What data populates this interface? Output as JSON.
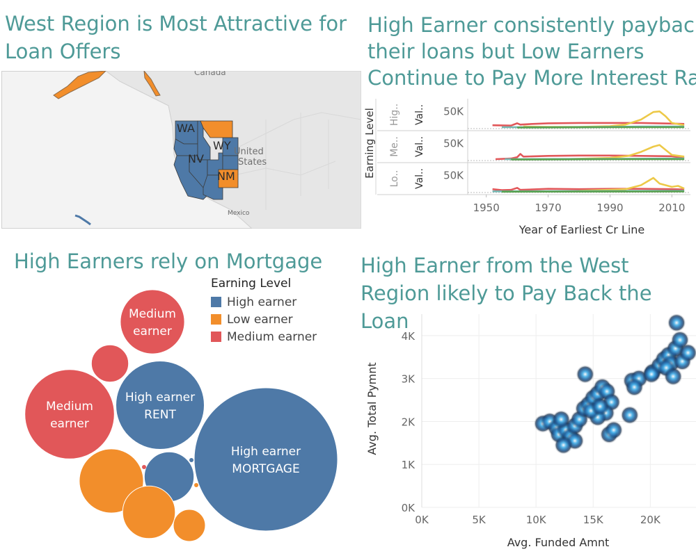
{
  "colors": {
    "high": "#4e79a7",
    "low": "#f28e2b",
    "medium": "#e15759",
    "title": "#4e9a97",
    "teal": "#76b7b2",
    "yellow": "#edc948"
  },
  "titles": {
    "map": "West Region is Most Attractive for Loan Offers",
    "line": "High Earner consistently payback their loans but Low Earners Continue to Pay More Interest Rates",
    "bubble": "High Earners rely on Mortgage",
    "scatter": "High Earner from the West Region likely to Pay Back the Loan"
  },
  "map": {
    "labels": {
      "canada": "Canada",
      "us_1": "United",
      "us_2": "States",
      "mexico": "Mexico"
    },
    "states": [
      {
        "abbr": "WA",
        "earning": "high",
        "labeled": true
      },
      {
        "abbr": "OR",
        "earning": "high",
        "labeled": false
      },
      {
        "abbr": "CA",
        "earning": "high",
        "labeled": false
      },
      {
        "abbr": "ID",
        "earning": "high",
        "labeled": false
      },
      {
        "abbr": "NV",
        "earning": "high",
        "labeled": true
      },
      {
        "abbr": "UT",
        "earning": "high",
        "labeled": false
      },
      {
        "abbr": "AZ",
        "earning": "high",
        "labeled": false
      },
      {
        "abbr": "WY",
        "earning": "high",
        "labeled": true
      },
      {
        "abbr": "CO",
        "earning": "high",
        "labeled": false
      },
      {
        "abbr": "MT",
        "earning": "low",
        "labeled": false
      },
      {
        "abbr": "NM",
        "earning": "low",
        "labeled": true
      },
      {
        "abbr": "AK",
        "earning": "low",
        "labeled": false
      },
      {
        "abbr": "HI",
        "earning": "high",
        "labeled": false
      }
    ]
  },
  "chart_data": [
    {
      "type": "line",
      "title": "High Earner consistently payback their loans but Low Earners Continue to Pay More Interest Rates",
      "xlabel": "Year of Earliest Cr Line",
      "row_axis_label": "Earning Level",
      "x_ticks": [
        1950,
        1970,
        1990,
        2010
      ],
      "xlim": [
        1944,
        2016
      ],
      "y_tick": "50K",
      "ylim": [
        0,
        80000
      ],
      "rows": [
        {
          "label": "Hig..",
          "sub": "Val..",
          "series": [
            {
              "color": "#e15759",
              "points": [
                [
                  1952,
                  8000
                ],
                [
                  1958,
                  7000
                ],
                [
                  1960,
                  14000
                ],
                [
                  1961,
                  10000
                ],
                [
                  1965,
                  12000
                ],
                [
                  1970,
                  14000
                ],
                [
                  1980,
                  15000
                ],
                [
                  1990,
                  15000
                ],
                [
                  2000,
                  15000
                ],
                [
                  2010,
                  13000
                ],
                [
                  2014,
                  12000
                ]
              ]
            },
            {
              "color": "#edc948",
              "points": [
                [
                  1962,
                  4000
                ],
                [
                  1970,
                  3000
                ],
                [
                  1980,
                  3000
                ],
                [
                  1990,
                  5000
                ],
                [
                  1995,
                  10000
                ],
                [
                  2000,
                  25000
                ],
                [
                  2004,
                  48000
                ],
                [
                  2006,
                  50000
                ],
                [
                  2008,
                  35000
                ],
                [
                  2010,
                  15000
                ],
                [
                  2014,
                  8000
                ]
              ]
            },
            {
              "color": "#76b7b2",
              "points": [
                [
                  1955,
                  2000
                ],
                [
                  1970,
                  2000
                ],
                [
                  1990,
                  3000
                ],
                [
                  2000,
                  4000
                ],
                [
                  2014,
                  4000
                ]
              ]
            },
            {
              "color": "#59a14f",
              "points": [
                [
                  1960,
                  1000
                ],
                [
                  1990,
                  2000
                ],
                [
                  2014,
                  2000
                ]
              ]
            }
          ]
        },
        {
          "label": "Me..",
          "sub": "Val..",
          "series": [
            {
              "color": "#e15759",
              "points": [
                [
                  1953,
                  2000
                ],
                [
                  1958,
                  4000
                ],
                [
                  1960,
                  8000
                ],
                [
                  1961,
                  18000
                ],
                [
                  1962,
                  10000
                ],
                [
                  1970,
                  12000
                ],
                [
                  1980,
                  13000
                ],
                [
                  1990,
                  13000
                ],
                [
                  2000,
                  12000
                ],
                [
                  2010,
                  11000
                ],
                [
                  2014,
                  6000
                ]
              ]
            },
            {
              "color": "#edc948",
              "points": [
                [
                  1975,
                  2000
                ],
                [
                  1990,
                  6000
                ],
                [
                  1996,
                  12000
                ],
                [
                  2000,
                  24000
                ],
                [
                  2004,
                  40000
                ],
                [
                  2006,
                  45000
                ],
                [
                  2008,
                  30000
                ],
                [
                  2010,
                  15000
                ],
                [
                  2014,
                  10000
                ]
              ]
            },
            {
              "color": "#76b7b2",
              "points": [
                [
                  1956,
                  2000
                ],
                [
                  1990,
                  3000
                ],
                [
                  2014,
                  4000
                ]
              ]
            },
            {
              "color": "#59a14f",
              "points": [
                [
                  1958,
                  1000
                ],
                [
                  1990,
                  2000
                ],
                [
                  2014,
                  2000
                ]
              ]
            }
          ]
        },
        {
          "label": "Lo..",
          "sub": "Val..",
          "series": [
            {
              "color": "#e15759",
              "points": [
                [
                  1952,
                  8000
                ],
                [
                  1955,
                  5000
                ],
                [
                  1958,
                  6000
                ],
                [
                  1960,
                  12000
                ],
                [
                  1961,
                  6000
                ],
                [
                  1970,
                  9000
                ],
                [
                  1980,
                  8000
                ],
                [
                  1990,
                  9000
                ],
                [
                  2000,
                  9000
                ],
                [
                  2010,
                  8000
                ],
                [
                  2014,
                  7000
                ]
              ]
            },
            {
              "color": "#edc948",
              "points": [
                [
                  1980,
                  3000
                ],
                [
                  1995,
                  8000
                ],
                [
                  2000,
                  20000
                ],
                [
                  2004,
                  42000
                ],
                [
                  2006,
                  25000
                ],
                [
                  2008,
                  20000
                ],
                [
                  2010,
                  15000
                ],
                [
                  2012,
                  18000
                ],
                [
                  2014,
                  10000
                ]
              ]
            },
            {
              "color": "#76b7b2",
              "points": [
                [
                  1952,
                  1500
                ],
                [
                  1990,
                  2500
                ],
                [
                  2014,
                  3000
                ]
              ]
            },
            {
              "color": "#59a14f",
              "points": [
                [
                  1955,
                  500
                ],
                [
                  2014,
                  1000
                ]
              ]
            }
          ]
        }
      ]
    },
    {
      "type": "bubble",
      "title": "High Earners rely on Mortgage",
      "legend_title": "Earning Level",
      "legend": [
        {
          "key": "high",
          "label": "High earner"
        },
        {
          "key": "low",
          "label": "Low earner"
        },
        {
          "key": "medium",
          "label": "Medium earner"
        }
      ],
      "bubbles": [
        {
          "earning": "high",
          "home": "MORTGAGE",
          "label1": "High earner",
          "label2": "MORTGAGE",
          "size": 1.0
        },
        {
          "earning": "high",
          "home": "RENT",
          "label1": "High earner",
          "label2": "RENT",
          "size": 0.38
        },
        {
          "earning": "medium",
          "home": "",
          "label1": "Medium earner",
          "label2": "",
          "size": 0.39
        },
        {
          "earning": "medium",
          "home": "",
          "label1": "Medium earner",
          "label2": "",
          "size": 0.2
        },
        {
          "earning": "medium",
          "home": "",
          "label1": "",
          "label2": "",
          "size": 0.067
        },
        {
          "earning": "high",
          "home": "",
          "label1": "",
          "label2": "",
          "size": 0.12
        },
        {
          "earning": "low",
          "home": "",
          "label1": "",
          "label2": "",
          "size": 0.2
        },
        {
          "earning": "low",
          "home": "",
          "label1": "",
          "label2": "",
          "size": 0.135
        },
        {
          "earning": "low",
          "home": "",
          "label1": "",
          "label2": "",
          "size": 0.05
        }
      ]
    },
    {
      "type": "scatter",
      "title": "High Earner from the West Region likely to Pay Back the Loan",
      "xlabel": "Avg. Funded Amnt",
      "ylabel": "Avg. Total Pymnt",
      "x_ticks": [
        "0K",
        "5K",
        "10K",
        "15K",
        "20K"
      ],
      "y_ticks": [
        "0K",
        "1K",
        "2K",
        "3K",
        "4K"
      ],
      "xlim": [
        0,
        24000
      ],
      "ylim": [
        0,
        4500
      ],
      "points": [
        [
          10600,
          1950
        ],
        [
          11200,
          2000
        ],
        [
          11800,
          1850
        ],
        [
          12000,
          1700
        ],
        [
          12600,
          1800
        ],
        [
          12200,
          2050
        ],
        [
          13000,
          1650
        ],
        [
          13400,
          1900
        ],
        [
          13800,
          2050
        ],
        [
          14200,
          2300
        ],
        [
          14600,
          2400
        ],
        [
          15000,
          2550
        ],
        [
          15400,
          2650
        ],
        [
          15800,
          2800
        ],
        [
          16200,
          2700
        ],
        [
          16600,
          2450
        ],
        [
          16100,
          2200
        ],
        [
          15400,
          2100
        ],
        [
          14800,
          2250
        ],
        [
          15600,
          2350
        ],
        [
          13400,
          1550
        ],
        [
          12400,
          1450
        ],
        [
          14300,
          3100
        ],
        [
          16400,
          1700
        ],
        [
          18200,
          2150
        ],
        [
          18400,
          2950
        ],
        [
          19000,
          3000
        ],
        [
          20200,
          3150
        ],
        [
          20800,
          3300
        ],
        [
          21200,
          3450
        ],
        [
          21600,
          3550
        ],
        [
          21800,
          3350
        ],
        [
          22200,
          3700
        ],
        [
          21400,
          3250
        ],
        [
          22600,
          3900
        ],
        [
          22800,
          3400
        ],
        [
          23300,
          3600
        ],
        [
          22300,
          4300
        ],
        [
          20100,
          3100
        ],
        [
          22000,
          3050
        ],
        [
          18600,
          2800
        ],
        [
          16800,
          1800
        ]
      ]
    }
  ]
}
